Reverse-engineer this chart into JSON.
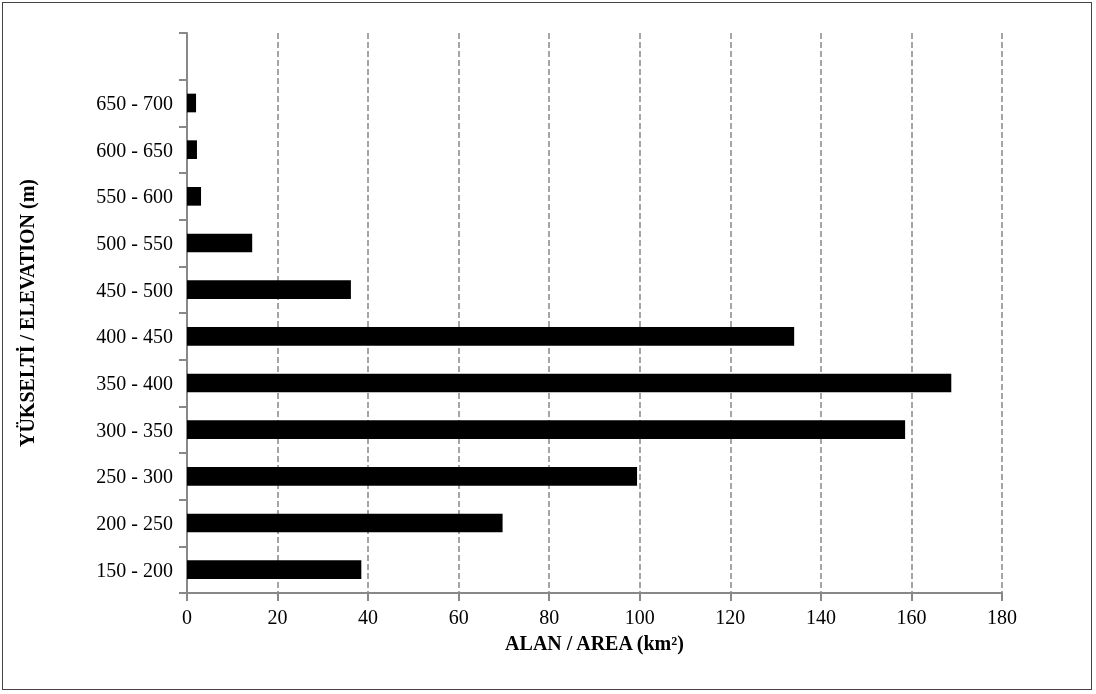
{
  "chart_data": {
    "type": "bar",
    "orientation": "horizontal",
    "xlabel": "ALAN / AREA (km²)",
    "ylabel": "YÜKSELTİ / ELEVATION (m)",
    "categories": [
      null,
      "650 - 700",
      "600 - 650",
      "550 - 600",
      "500 - 550",
      "450 - 500",
      "400 - 450",
      "350 - 400",
      "300 - 350",
      "250 - 300",
      "200 - 250",
      "150 - 200"
    ],
    "values": [
      null,
      2,
      2.2,
      3.1,
      14.4,
      36.2,
      134.1,
      168.8,
      158.6,
      99.4,
      69.7,
      38.5
    ],
    "color": "#000000",
    "xlim": [
      0,
      180
    ],
    "xticks": [
      0,
      20,
      40,
      60,
      80,
      100,
      120,
      140,
      160,
      180
    ],
    "grid": "x"
  }
}
